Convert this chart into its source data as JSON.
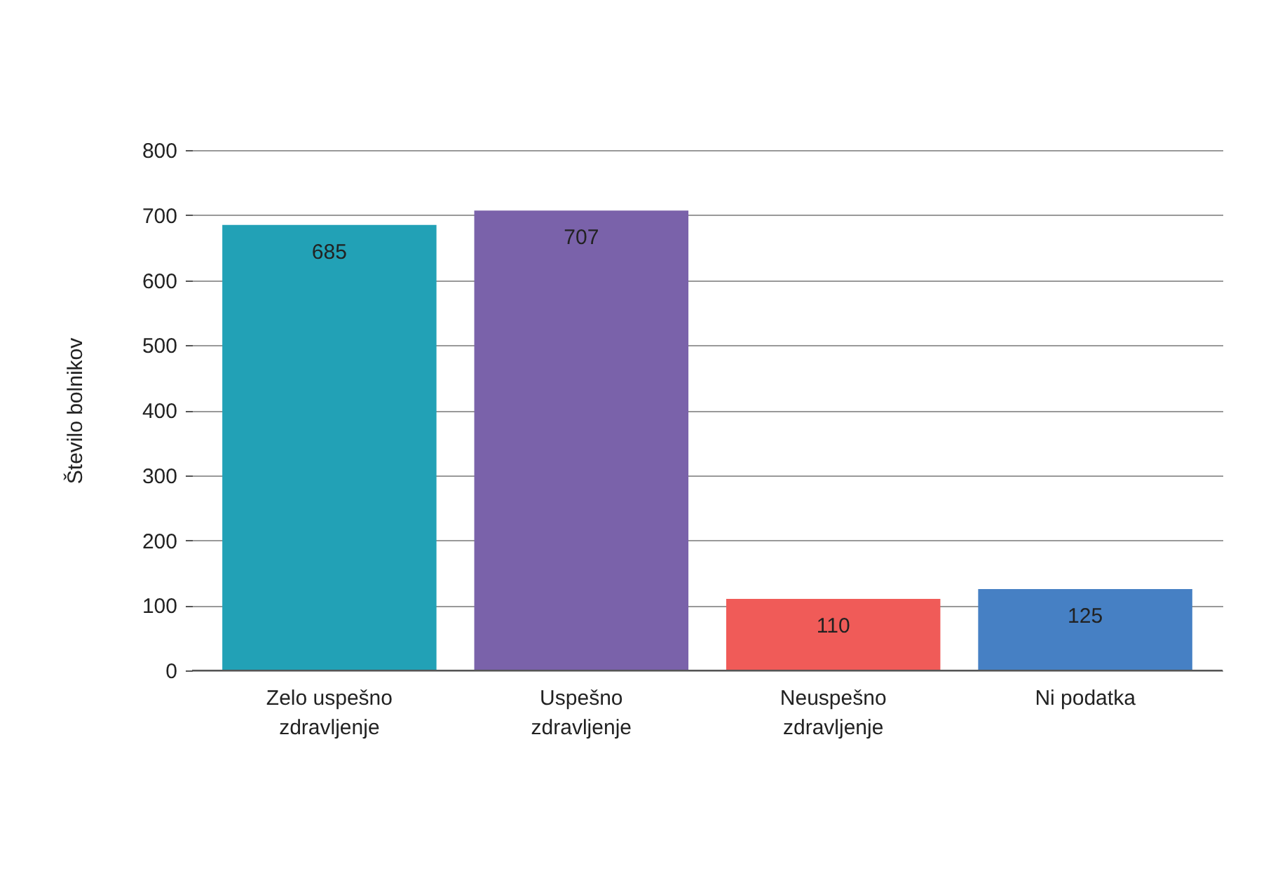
{
  "chart_data": {
    "type": "bar",
    "ylabel": "Število bolnikov",
    "categories": [
      "Zelo uspešno\nzdravljenje",
      "Uspešno\nzdravljenje",
      "Neuspešno\nzdravljenje",
      "Ni podatka"
    ],
    "values": [
      685,
      707,
      110,
      125
    ],
    "colors": [
      "#22a1b6",
      "#7a62aa",
      "#f05b58",
      "#4680c4"
    ],
    "data_labels": true,
    "ylim": [
      0,
      800
    ],
    "yticks": [
      0,
      100,
      200,
      300,
      400,
      500,
      600,
      700,
      800
    ],
    "grid": "y"
  }
}
